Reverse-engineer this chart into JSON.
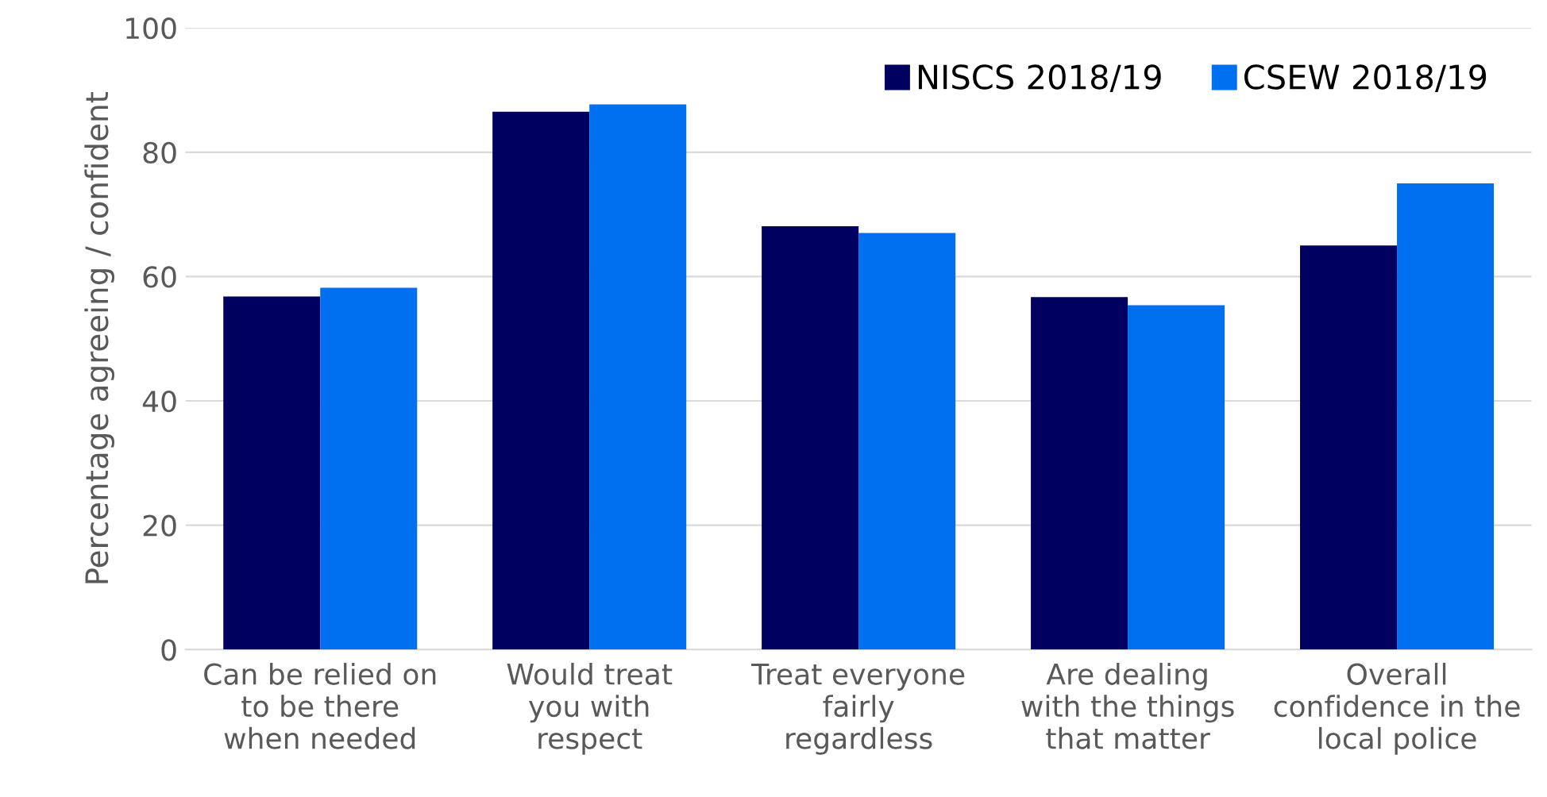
{
  "chart_data": {
    "type": "bar",
    "ylabel": "Percentage agreeing / confident",
    "categories": [
      "Can be relied on\nto be there\nwhen needed",
      "Would treat\nyou with\nrespect",
      "Treat everyone\nfairly\nregardless",
      "Are dealing\nwith the things\nthat matter",
      "Overall\nconfidence in the\nlocal police"
    ],
    "series": [
      {
        "name": "NISCS 2018/19",
        "color": "#000060",
        "values": [
          56.8,
          86.5,
          68.1,
          56.7,
          65.0
        ]
      },
      {
        "name": "CSEW 2018/19",
        "color": "#0070f0",
        "values": [
          58.2,
          87.7,
          67.0,
          55.4,
          75.0
        ]
      }
    ],
    "ylim": [
      0,
      100
    ],
    "yticks": [
      0,
      20,
      40,
      60,
      80,
      100
    ],
    "grid": "y",
    "legend": "top right"
  }
}
